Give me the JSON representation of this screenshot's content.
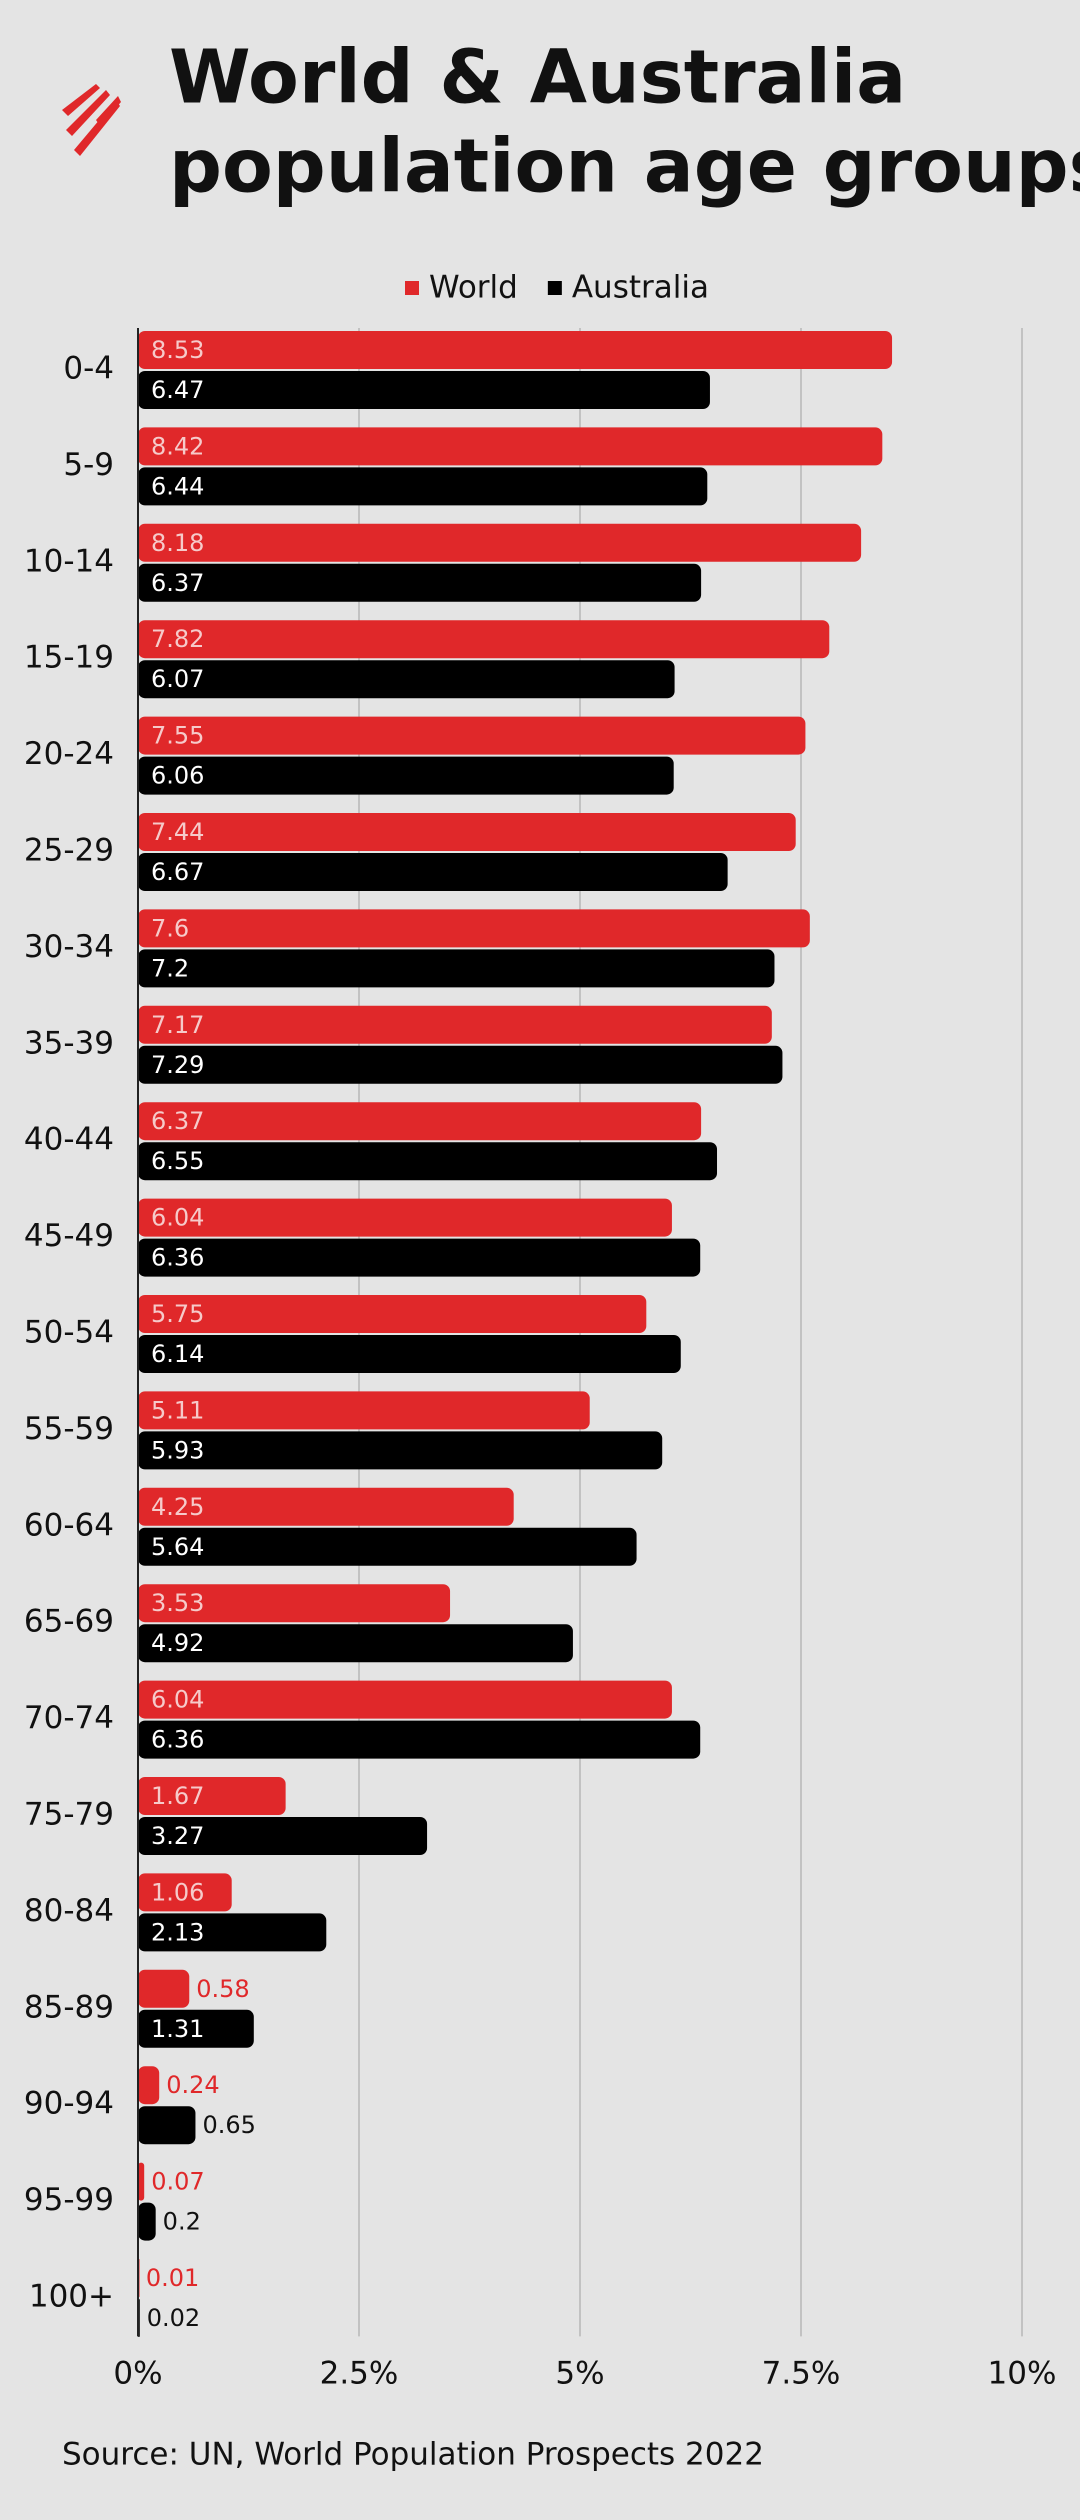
{
  "chart_data": {
    "type": "bar",
    "orientation": "horizontal",
    "title": [
      "World & Australia",
      "population age groups"
    ],
    "source": "Source: UN, World Population Prospects 2022",
    "categories": [
      "0-4",
      "5-9",
      "10-14",
      "15-19",
      "20-24",
      "25-29",
      "30-34",
      "35-39",
      "40-44",
      "45-49",
      "50-54",
      "55-59",
      "60-64",
      "65-69",
      "70-74",
      "75-79",
      "80-84",
      "85-89",
      "90-94",
      "95-99",
      "100+"
    ],
    "series": [
      {
        "name": "World",
        "color": "#e0282a",
        "values": [
          8.53,
          8.42,
          8.18,
          7.82,
          7.55,
          7.44,
          7.6,
          7.17,
          6.37,
          6.04,
          5.75,
          5.11,
          4.25,
          3.53,
          6.04,
          1.67,
          1.06,
          0.58,
          0.24,
          0.07,
          0.01
        ]
      },
      {
        "name": "Australia",
        "color": "#000000",
        "values": [
          6.47,
          6.44,
          6.37,
          6.07,
          6.06,
          6.67,
          7.2,
          7.29,
          6.55,
          6.36,
          6.14,
          5.93,
          5.64,
          4.92,
          6.36,
          3.27,
          2.13,
          1.31,
          0.65,
          0.2,
          0.02
        ]
      }
    ],
    "xlim": [
      0,
      10
    ],
    "xticks": [
      {
        "value": 0,
        "label": "0%"
      },
      {
        "value": 2.5,
        "label": "2.5%"
      },
      {
        "value": 5,
        "label": "5%"
      },
      {
        "value": 7.5,
        "label": "7.5%"
      },
      {
        "value": 10,
        "label": "10%"
      }
    ],
    "grid": true,
    "legend": "top"
  }
}
